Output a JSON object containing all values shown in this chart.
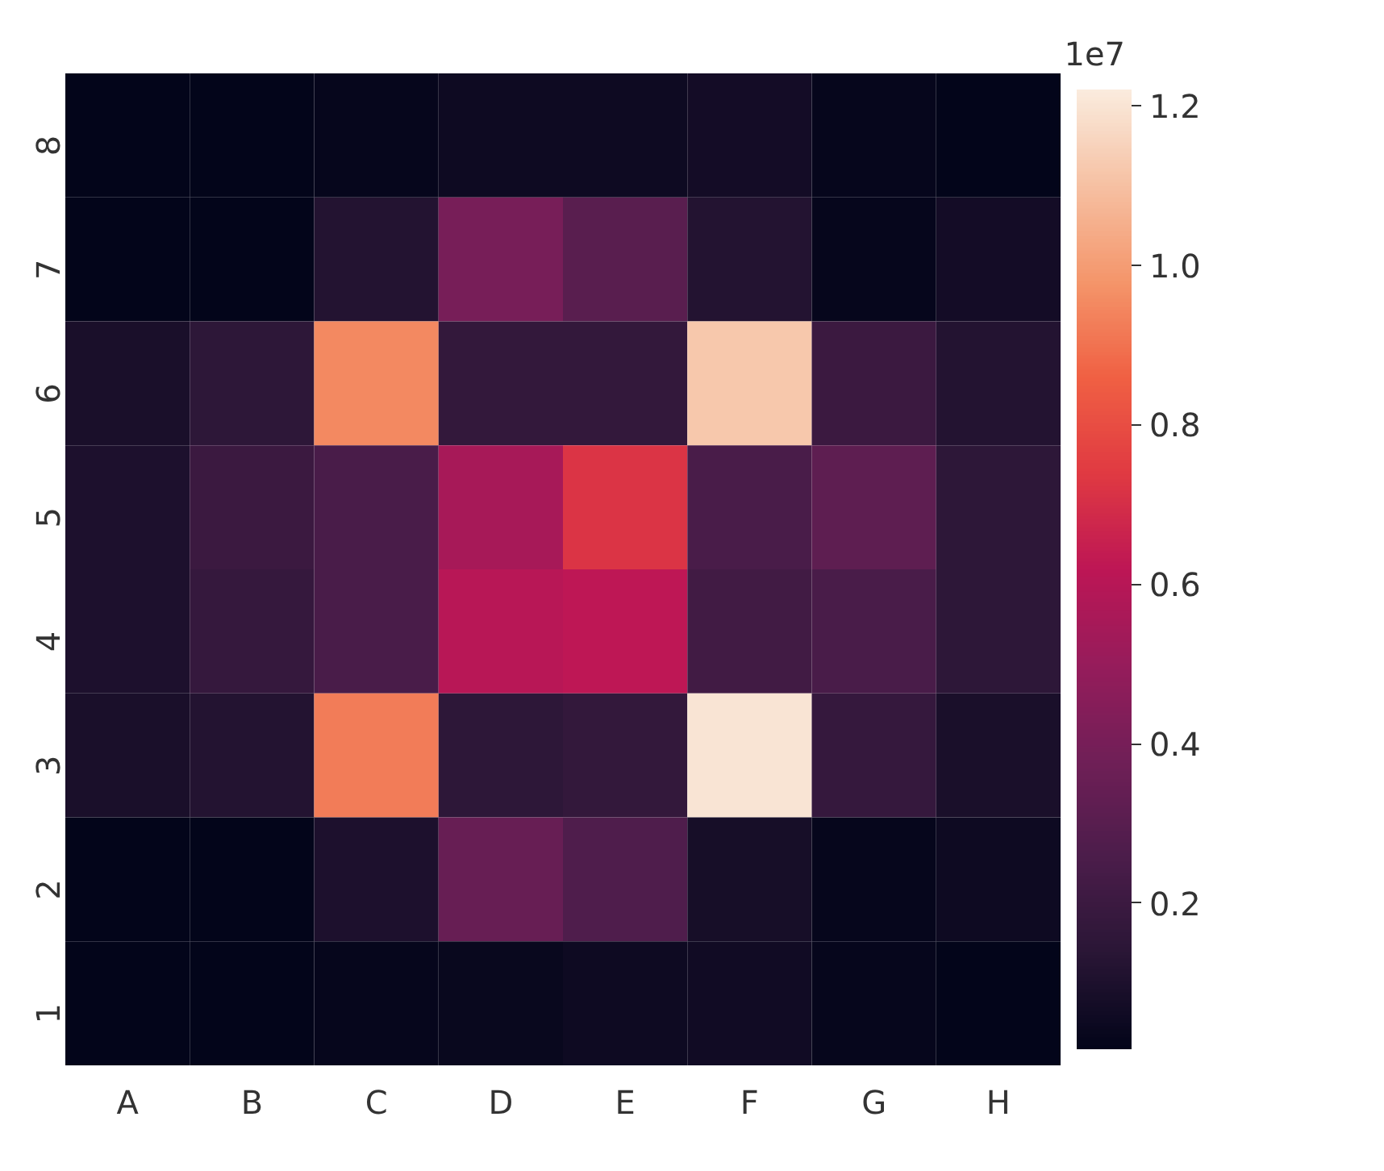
{
  "chart_data": {
    "type": "heatmap",
    "categories": [
      "A",
      "B",
      "C",
      "D",
      "E",
      "F",
      "G",
      "H"
    ],
    "y_categories": [
      "8",
      "7",
      "6",
      "5",
      "4",
      "3",
      "2",
      "1"
    ],
    "cells": [
      [
        0.02,
        0.02,
        0.03,
        0.05,
        0.05,
        0.07,
        0.03,
        0.02
      ],
      [
        0.02,
        0.02,
        0.12,
        0.4,
        0.3,
        0.12,
        0.03,
        0.07
      ],
      [
        0.09,
        0.15,
        0.95,
        0.17,
        0.17,
        1.12,
        0.2,
        0.12
      ],
      [
        0.1,
        0.2,
        0.25,
        0.55,
        0.72,
        0.25,
        0.32,
        0.15
      ],
      [
        0.1,
        0.18,
        0.25,
        0.6,
        0.62,
        0.22,
        0.25,
        0.15
      ],
      [
        0.09,
        0.12,
        0.92,
        0.15,
        0.17,
        1.2,
        0.18,
        0.09
      ],
      [
        0.02,
        0.02,
        0.1,
        0.35,
        0.27,
        0.08,
        0.03,
        0.05
      ],
      [
        0.02,
        0.02,
        0.03,
        0.04,
        0.05,
        0.06,
        0.03,
        0.02
      ]
    ],
    "clim": [
      0.017,
      1.22
    ],
    "cticks": [
      0.2,
      0.4,
      0.6,
      0.8,
      {
        "value": 1,
        "label": "1.0"
      },
      1.2
    ],
    "clabel": "1e7"
  }
}
